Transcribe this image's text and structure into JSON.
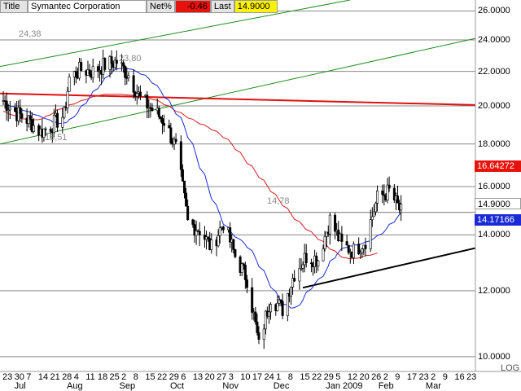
{
  "header": {
    "title_label": "Title",
    "title_value": "Symantec Corporation",
    "netpct_label": "Net%",
    "netpct_value": "-0.46",
    "last_label": "Last",
    "last_value": "14.9000"
  },
  "price_tags": {
    "ma_long": "16.64272",
    "last": "14.9000",
    "ma_short": "14.17166"
  },
  "annotations": {
    "a1": "24,38",
    "a2": "23,80",
    "a3": "18,51",
    "a4": "14,78"
  },
  "axis_scale": "LOG",
  "colors": {
    "price": "#000000",
    "ma_short": "#1a2bd6",
    "ma_long": "#d42020",
    "resistance": "#e01010",
    "channel": "#1f8a1f",
    "support": "#000000",
    "grid": "#8a8a8a",
    "netpct_bg": "#e8120c",
    "last_bg": "#fff200",
    "ma_long_tag_bg": "#e8120c",
    "ma_short_tag_bg": "#1a2bd6"
  },
  "chart_data": {
    "type": "candlestick",
    "scale": "log",
    "ylim": [
      9.6,
      26.8
    ],
    "yticks": [
      "26.0000",
      "24.0000",
      "22.0000",
      "20.0000",
      "18.0000",
      "16.0000",
      "14.0000",
      "12.0000",
      "10.0000"
    ],
    "xticks": [
      "23",
      "30",
      "7",
      "14",
      "21",
      "28",
      "4",
      "11",
      "18",
      "25",
      "2",
      "8",
      "15",
      "22",
      "29",
      "6",
      "13",
      "20",
      "27",
      "3",
      "10",
      "17",
      "24",
      "1",
      "8",
      "15",
      "22",
      "29",
      "5",
      "12",
      "20",
      "26",
      "2",
      "9",
      "17",
      "23",
      "2",
      "9",
      "16",
      "23"
    ],
    "months": [
      "Jul",
      "Aug",
      "Sep",
      "Oct",
      "Nov",
      "Dec",
      "Jan 2009",
      "Feb",
      "Mar"
    ],
    "last_price": 14.9,
    "ma_short_last": 14.17166,
    "ma_long_last": 16.64272,
    "resistance_level": 20.5,
    "close_path": [
      {
        "date": "2008-06-23",
        "close": 20.3
      },
      {
        "date": "2008-07-01",
        "close": 19.6
      },
      {
        "date": "2008-07-08",
        "close": 19.2
      },
      {
        "date": "2008-07-15",
        "close": 18.6
      },
      {
        "date": "2008-07-22",
        "close": 19.0
      },
      {
        "date": "2008-07-29",
        "close": 19.5
      },
      {
        "date": "2008-08-01",
        "close": 21.6
      },
      {
        "date": "2008-08-08",
        "close": 22.1
      },
      {
        "date": "2008-08-15",
        "close": 22.0
      },
      {
        "date": "2008-08-22",
        "close": 22.4
      },
      {
        "date": "2008-08-29",
        "close": 22.6
      },
      {
        "date": "2008-09-05",
        "close": 21.8
      },
      {
        "date": "2008-09-12",
        "close": 20.4
      },
      {
        "date": "2008-09-19",
        "close": 19.8
      },
      {
        "date": "2008-09-26",
        "close": 19.2
      },
      {
        "date": "2008-10-03",
        "close": 17.8
      },
      {
        "date": "2008-10-10",
        "close": 14.5
      },
      {
        "date": "2008-10-17",
        "close": 14.2
      },
      {
        "date": "2008-10-24",
        "close": 13.5
      },
      {
        "date": "2008-10-31",
        "close": 14.5
      },
      {
        "date": "2008-11-07",
        "close": 13.2
      },
      {
        "date": "2008-11-14",
        "close": 12.4
      },
      {
        "date": "2008-11-21",
        "close": 10.3
      },
      {
        "date": "2008-11-28",
        "close": 11.8
      },
      {
        "date": "2008-12-05",
        "close": 11.4
      },
      {
        "date": "2008-12-12",
        "close": 12.6
      },
      {
        "date": "2008-12-19",
        "close": 13.2
      },
      {
        "date": "2008-12-26",
        "close": 13.1
      },
      {
        "date": "2009-01-02",
        "close": 14.6
      },
      {
        "date": "2009-01-09",
        "close": 13.6
      },
      {
        "date": "2009-01-16",
        "close": 13.4
      },
      {
        "date": "2009-01-23",
        "close": 13.8
      },
      {
        "date": "2009-01-30",
        "close": 15.5
      },
      {
        "date": "2009-02-06",
        "close": 15.8
      },
      {
        "date": "2009-02-13",
        "close": 14.9
      }
    ]
  }
}
